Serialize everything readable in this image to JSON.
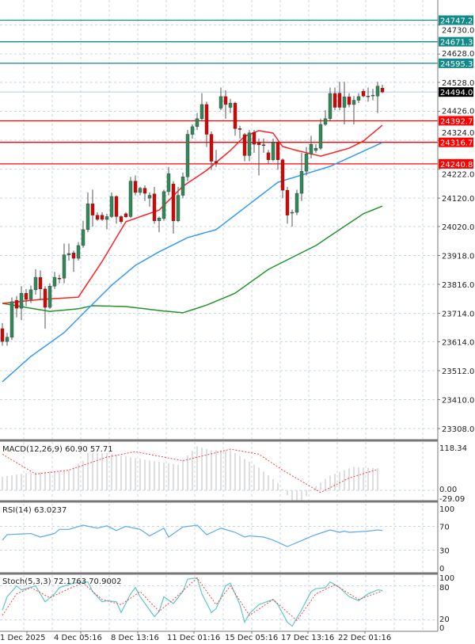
{
  "chart_data": {
    "type": "candlestick",
    "instrument_panel": "main",
    "price_axis": {
      "ticks": [
        "24730.0",
        "24628.0",
        "24528.0",
        "24426.0",
        "24324.0",
        "24222.0",
        "24120.0",
        "24020.0",
        "23918.0",
        "23816.0",
        "23714.0",
        "23614.0",
        "23512.0",
        "23410.0",
        "23308.0"
      ],
      "range": [
        23280,
        24770
      ]
    },
    "time_axis": {
      "labels": [
        "1 Dec 2025",
        "4 Dec 05:16",
        "8 Dec 13:16",
        "11 Dec 01:16",
        "15 Dec 05:16",
        "17 Dec 13:16",
        "22 Dec 01:16"
      ]
    },
    "grid": true,
    "current_price": {
      "value": 24494.0,
      "label": "24494.0",
      "color": "#000000"
    },
    "levels": [
      {
        "value": 24747.2,
        "label": "24747.2",
        "color": "#138a8a"
      },
      {
        "value": 24671.3,
        "label": "24671.3",
        "color": "#138a8a"
      },
      {
        "value": 24595.3,
        "label": "24595.3",
        "color": "#138a8a"
      },
      {
        "value": 24392.7,
        "label": "24392.7",
        "color": "#ff0000"
      },
      {
        "value": 24316.7,
        "label": "24316.7",
        "color": "#ff0000"
      },
      {
        "value": 24240.8,
        "label": "24240.8",
        "color": "#ff0000"
      }
    ],
    "colors": {
      "bull": "#2e8b57",
      "bear": "#e00000",
      "wick": "#555555",
      "ma_fast": "#ff2020",
      "ma_mid": "#3399ff",
      "ma_slow": "#22942a",
      "macd_hist": "#c8c8c8",
      "macd_signal": "#ff4040",
      "rsi": "#5aaaf0",
      "stoch_main": "#5cc8c8",
      "stoch_signal": "#ff4040"
    },
    "candles_ohlc": [
      [
        23660,
        23680,
        23600,
        23615
      ],
      [
        23615,
        23645,
        23600,
        23630
      ],
      [
        23630,
        23770,
        23620,
        23755
      ],
      [
        23760,
        23775,
        23700,
        23732
      ],
      [
        23732,
        23810,
        23690,
        23785
      ],
      [
        23785,
        23800,
        23740,
        23763
      ],
      [
        23763,
        23812,
        23750,
        23797
      ],
      [
        23797,
        23870,
        23780,
        23841
      ],
      [
        23841,
        23865,
        23760,
        23800
      ],
      [
        23800,
        23810,
        23660,
        23735
      ],
      [
        23735,
        23820,
        23730,
        23810
      ],
      [
        23810,
        23860,
        23800,
        23841
      ],
      [
        23838,
        23850,
        23820,
        23835
      ],
      [
        23838,
        23960,
        23820,
        23920
      ],
      [
        23920,
        23960,
        23900,
        23925
      ],
      [
        23927,
        23935,
        23860,
        23908
      ],
      [
        23908,
        23965,
        23900,
        23953
      ],
      [
        23953,
        24040,
        23945,
        24009
      ],
      [
        24009,
        24140,
        24000,
        24100
      ],
      [
        24100,
        24150,
        24020,
        24060
      ],
      [
        24060,
        24070,
        24040,
        24045
      ],
      [
        24060,
        24070,
        24040,
        24045
      ],
      [
        24045,
        24065,
        24010,
        24055
      ],
      [
        24055,
        24140,
        24050,
        24126
      ],
      [
        24126,
        24130,
        24030,
        24055
      ],
      [
        24055,
        24060,
        24030,
        24037
      ],
      [
        24065,
        24070,
        24050,
        24054
      ],
      [
        24055,
        24195,
        24050,
        24180
      ],
      [
        24180,
        24200,
        24130,
        24140
      ],
      [
        24140,
        24160,
        24130,
        24155
      ],
      [
        24155,
        24165,
        24110,
        24137
      ],
      [
        24120,
        24140,
        24090,
        24130
      ],
      [
        24135,
        24160,
        24030,
        24040
      ],
      [
        24040,
        24055,
        24000,
        24050
      ],
      [
        24048,
        24150,
        24040,
        24143
      ],
      [
        24143,
        24230,
        24130,
        24206
      ],
      [
        24170,
        24180,
        23995,
        24040
      ],
      [
        24040,
        24160,
        24035,
        24130
      ],
      [
        24130,
        24210,
        24120,
        24195
      ],
      [
        24195,
        24360,
        24180,
        24345
      ],
      [
        24345,
        24380,
        24330,
        24372
      ],
      [
        24372,
        24420,
        24360,
        24400
      ],
      [
        24400,
        24490,
        24390,
        24450
      ],
      [
        24450,
        24460,
        24300,
        24345
      ],
      [
        24345,
        24355,
        24220,
        24250
      ],
      [
        24250,
        24290,
        24230,
        24244
      ],
      [
        24437,
        24510,
        24430,
        24478
      ],
      [
        24478,
        24500,
        24400,
        24450
      ],
      [
        24440,
        24470,
        24420,
        24455
      ],
      [
        24455,
        24460,
        24340,
        24365
      ],
      [
        24365,
        24375,
        24330,
        24362
      ],
      [
        24344,
        24350,
        24250,
        24270
      ],
      [
        24270,
        24360,
        24250,
        24350
      ],
      [
        24352,
        24360,
        24280,
        24310
      ],
      [
        24316,
        24330,
        24200,
        24308
      ],
      [
        24308,
        24330,
        24280,
        24306
      ],
      [
        24280,
        24290,
        24240,
        24255
      ],
      [
        24255,
        24330,
        24250,
        24316
      ],
      [
        24316,
        24320,
        24220,
        24255
      ],
      [
        24255,
        24260,
        24120,
        24148
      ],
      [
        24148,
        24160,
        24030,
        24060
      ],
      [
        24068,
        24080,
        24020,
        24070
      ],
      [
        24070,
        24150,
        24060,
        24137
      ],
      [
        24137,
        24280,
        24110,
        24215
      ],
      [
        24215,
        24300,
        24200,
        24276
      ],
      [
        24276,
        24340,
        24260,
        24310
      ],
      [
        24288,
        24310,
        24280,
        24296
      ],
      [
        24296,
        24400,
        24290,
        24380
      ],
      [
        24380,
        24430,
        24375,
        24400
      ],
      [
        24400,
        24510,
        24390,
        24489
      ],
      [
        24489,
        24510,
        24430,
        24440
      ],
      [
        24490,
        24530,
        24430,
        24440
      ],
      [
        24440,
        24530,
        24380,
        24477
      ],
      [
        24477,
        24490,
        24440,
        24450
      ],
      [
        24450,
        24480,
        24380,
        24465
      ],
      [
        24465,
        24490,
        24455,
        24478
      ],
      [
        24497,
        24505,
        24475,
        24480
      ],
      [
        24480,
        24510,
        24460,
        24480
      ],
      [
        24483,
        24505,
        24465,
        24483
      ],
      [
        24480,
        24530,
        24420,
        24515
      ],
      [
        24508,
        24520,
        24490,
        24494
      ]
    ],
    "ma_fast_points": [
      [
        0,
        23749
      ],
      [
        8,
        23763
      ],
      [
        16,
        23771
      ],
      [
        21,
        23897
      ],
      [
        26,
        24037
      ],
      [
        33,
        24078
      ],
      [
        38,
        24162
      ],
      [
        43,
        24218
      ],
      [
        48,
        24288
      ],
      [
        51,
        24338
      ],
      [
        54,
        24358
      ],
      [
        57,
        24349
      ],
      [
        59,
        24302
      ],
      [
        62,
        24288
      ],
      [
        67,
        24268
      ],
      [
        73,
        24296
      ],
      [
        76,
        24321
      ],
      [
        80,
        24377
      ]
    ],
    "ma_mid_points": [
      [
        0,
        23473
      ],
      [
        6,
        23562
      ],
      [
        13,
        23646
      ],
      [
        18,
        23730
      ],
      [
        23,
        23813
      ],
      [
        28,
        23883
      ],
      [
        33,
        23931
      ],
      [
        39,
        23981
      ],
      [
        45,
        24009
      ],
      [
        58,
        24176
      ],
      [
        69,
        24232
      ],
      [
        80,
        24316
      ]
    ],
    "ma_slow_points": [
      [
        0,
        23749
      ],
      [
        10,
        23721
      ],
      [
        16,
        23730
      ],
      [
        19,
        23741
      ],
      [
        26,
        23738
      ],
      [
        33,
        23724
      ],
      [
        38,
        23716
      ],
      [
        43,
        23743
      ],
      [
        49,
        23785
      ],
      [
        56,
        23869
      ],
      [
        61,
        23911
      ],
      [
        66,
        23953
      ],
      [
        71,
        24009
      ],
      [
        76,
        24065
      ],
      [
        80,
        24092
      ]
    ],
    "macd": {
      "label": "MACD(12,26,9) 60.90 57.71",
      "ticks": [
        "118.34",
        "0.00",
        "-29.09"
      ],
      "hist_points": [
        [
          0,
          38
        ],
        [
          6,
          49
        ],
        [
          14,
          56
        ],
        [
          17,
          82
        ],
        [
          18,
          103
        ],
        [
          22,
          103
        ],
        [
          30,
          85
        ],
        [
          37,
          71
        ],
        [
          41,
          122
        ],
        [
          44,
          111
        ],
        [
          48,
          111
        ],
        [
          54,
          63
        ],
        [
          58,
          20
        ],
        [
          61,
          -30
        ],
        [
          63,
          -30
        ],
        [
          66,
          12
        ],
        [
          69,
          41
        ],
        [
          72,
          56
        ],
        [
          74,
          65
        ],
        [
          79,
          61
        ]
      ],
      "signal_points": [
        [
          0,
          100
        ],
        [
          7,
          45
        ],
        [
          14,
          56
        ],
        [
          22,
          92
        ],
        [
          28,
          107
        ],
        [
          38,
          82
        ],
        [
          48,
          114
        ],
        [
          54,
          100
        ],
        [
          59,
          56
        ],
        [
          67,
          -6
        ],
        [
          73,
          34
        ],
        [
          79,
          58
        ]
      ]
    },
    "rsi": {
      "label": "RSI(14) 63.0237",
      "ticks": [
        "100",
        "70",
        "30",
        "0"
      ],
      "points": [
        [
          0,
          47
        ],
        [
          1,
          56
        ],
        [
          6,
          58
        ],
        [
          8,
          52
        ],
        [
          11,
          58
        ],
        [
          12,
          65
        ],
        [
          14,
          65
        ],
        [
          17,
          72
        ],
        [
          20,
          67
        ],
        [
          22,
          71
        ],
        [
          24,
          63
        ],
        [
          26,
          70
        ],
        [
          29,
          65
        ],
        [
          31,
          54
        ],
        [
          34,
          67
        ],
        [
          35,
          52
        ],
        [
          38,
          69
        ],
        [
          41,
          72
        ],
        [
          43,
          56
        ],
        [
          46,
          67
        ],
        [
          49,
          60
        ],
        [
          51,
          52
        ],
        [
          52,
          54
        ],
        [
          55,
          52
        ],
        [
          57,
          47
        ],
        [
          60,
          36
        ],
        [
          65,
          53
        ],
        [
          66,
          56
        ],
        [
          69,
          64
        ],
        [
          71,
          60
        ],
        [
          72,
          62
        ],
        [
          73,
          60
        ],
        [
          77,
          62
        ],
        [
          79,
          64
        ],
        [
          80,
          63
        ]
      ]
    },
    "stoch": {
      "label": "Stoch(5,3,3) 72.1763 70.9002",
      "ticks": [
        "100",
        "80",
        "20",
        "0"
      ],
      "main_points": [
        [
          0,
          37
        ],
        [
          1,
          61
        ],
        [
          3,
          80
        ],
        [
          4,
          73
        ],
        [
          7,
          80
        ],
        [
          9,
          52
        ],
        [
          11,
          66
        ],
        [
          12,
          77
        ],
        [
          15,
          85
        ],
        [
          18,
          87
        ],
        [
          19,
          70
        ],
        [
          21,
          52
        ],
        [
          22,
          54
        ],
        [
          24,
          52
        ],
        [
          25,
          33
        ],
        [
          27,
          66
        ],
        [
          28,
          77
        ],
        [
          29,
          61
        ],
        [
          32,
          26
        ],
        [
          33,
          35
        ],
        [
          34,
          61
        ],
        [
          36,
          49
        ],
        [
          38,
          70
        ],
        [
          39,
          92
        ],
        [
          41,
          94
        ],
        [
          42,
          66
        ],
        [
          44,
          33
        ],
        [
          45,
          40
        ],
        [
          47,
          80
        ],
        [
          48,
          85
        ],
        [
          50,
          47
        ],
        [
          51,
          16
        ],
        [
          52,
          31
        ],
        [
          54,
          47
        ],
        [
          57,
          56
        ],
        [
          58,
          47
        ],
        [
          60,
          16
        ],
        [
          61,
          9
        ],
        [
          63,
          38
        ],
        [
          65,
          70
        ],
        [
          66,
          75
        ],
        [
          68,
          77
        ],
        [
          69,
          87
        ],
        [
          71,
          77
        ],
        [
          73,
          61
        ],
        [
          75,
          54
        ],
        [
          77,
          66
        ],
        [
          79,
          73
        ],
        [
          80,
          72
        ]
      ],
      "signal_points": [
        [
          0,
          28
        ],
        [
          3,
          66
        ],
        [
          6,
          77
        ],
        [
          10,
          59
        ],
        [
          14,
          75
        ],
        [
          17,
          85
        ],
        [
          21,
          56
        ],
        [
          25,
          47
        ],
        [
          29,
          70
        ],
        [
          33,
          35
        ],
        [
          36,
          56
        ],
        [
          41,
          94
        ],
        [
          45,
          47
        ],
        [
          48,
          80
        ],
        [
          52,
          28
        ],
        [
          57,
          56
        ],
        [
          62,
          19
        ],
        [
          66,
          66
        ],
        [
          70,
          82
        ],
        [
          75,
          56
        ],
        [
          80,
          71
        ]
      ]
    }
  }
}
